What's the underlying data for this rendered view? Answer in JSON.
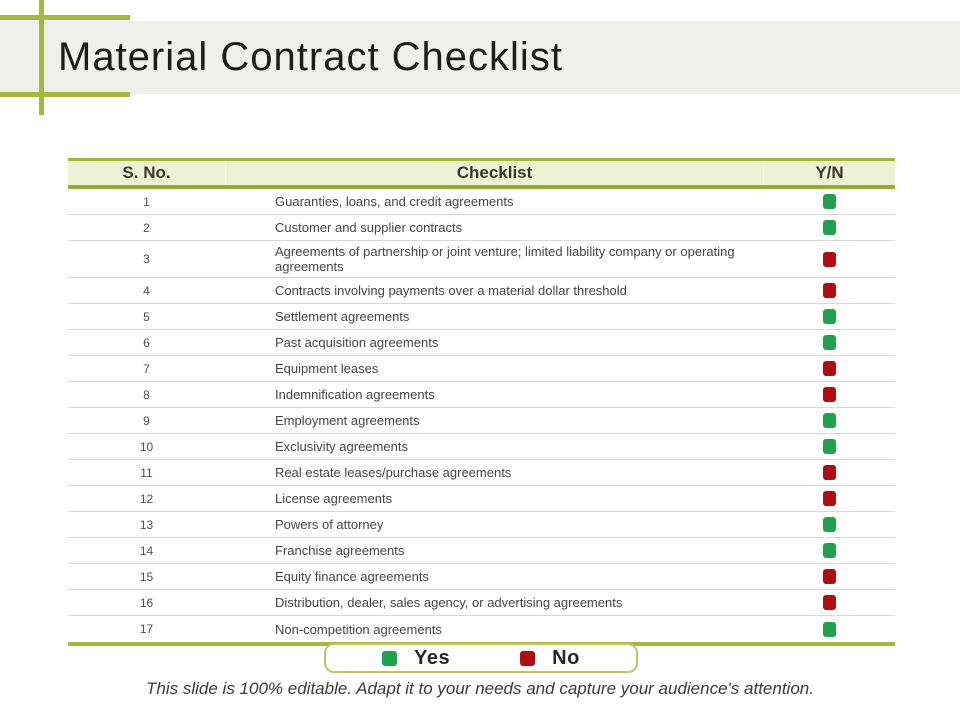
{
  "slide": {
    "title": "Material Contract Checklist",
    "footer": "This slide is 100% editable. Adapt it to your needs and capture your audience's attention."
  },
  "table": {
    "headers": {
      "sno": "S. No.",
      "checklist": "Checklist",
      "yn": "Y/N"
    },
    "rows": [
      {
        "no": "1",
        "item": "Guaranties, loans, and credit agreements",
        "yn": "yes"
      },
      {
        "no": "2",
        "item": "Customer and supplier contracts",
        "yn": "yes"
      },
      {
        "no": "3",
        "item": "Agreements of partnership or joint venture; limited liability company or operating agreements",
        "yn": "no"
      },
      {
        "no": "4",
        "item": "Contracts involving payments over a material dollar threshold",
        "yn": "no"
      },
      {
        "no": "5",
        "item": "Settlement agreements",
        "yn": "yes"
      },
      {
        "no": "6",
        "item": "Past acquisition agreements",
        "yn": "yes"
      },
      {
        "no": "7",
        "item": "Equipment leases",
        "yn": "no"
      },
      {
        "no": "8",
        "item": "Indemnification agreements",
        "yn": "no"
      },
      {
        "no": "9",
        "item": "Employment agreements",
        "yn": "yes"
      },
      {
        "no": "10",
        "item": "Exclusivity agreements",
        "yn": "yes"
      },
      {
        "no": "11",
        "item": "Real estate leases/purchase agreements",
        "yn": "no"
      },
      {
        "no": "12",
        "item": "License agreements",
        "yn": "no"
      },
      {
        "no": "13",
        "item": "Powers of attorney",
        "yn": "yes"
      },
      {
        "no": "14",
        "item": "Franchise agreements",
        "yn": "yes"
      },
      {
        "no": "15",
        "item": "Equity finance agreements",
        "yn": "no"
      },
      {
        "no": "16",
        "item": "Distribution, dealer, sales agency, or advertising agreements",
        "yn": "no"
      },
      {
        "no": "17",
        "item": "Non-competition agreements",
        "yn": "yes"
      }
    ]
  },
  "legend": {
    "yes_label": "Yes",
    "no_label": "No"
  },
  "colors": {
    "accent_olive": "#a5b83a",
    "header_background": "#eef2d5",
    "yes_green": "#1ea24e",
    "no_red": "#b20d10",
    "title_band": "#efefec"
  }
}
